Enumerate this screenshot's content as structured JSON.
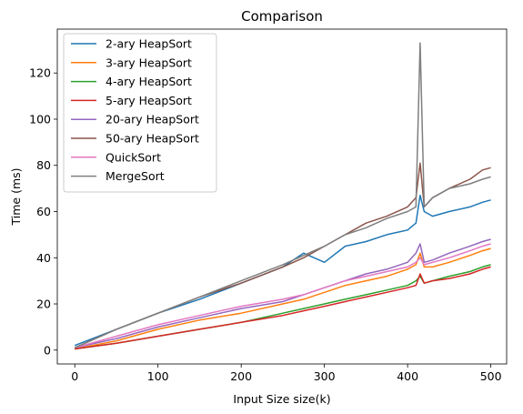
{
  "chart_data": {
    "type": "line",
    "title": "Comparison",
    "xlabel": "Input Size size(k)",
    "ylabel": "Time (ms)",
    "xlim": [
      -21,
      519
    ],
    "ylim": [
      -6,
      139
    ],
    "x_ticks": [
      0,
      100,
      200,
      300,
      400,
      500
    ],
    "y_ticks": [
      0,
      20,
      40,
      60,
      80,
      100,
      120
    ],
    "grid": false,
    "legend_position": "upper-left",
    "x": [
      0,
      50,
      100,
      150,
      200,
      250,
      275,
      300,
      325,
      350,
      375,
      400,
      410,
      415,
      420,
      430,
      450,
      475,
      490,
      500
    ],
    "series": [
      {
        "name": "2-ary HeapSort",
        "color": "#1f77b4",
        "values": [
          2,
          9,
          16,
          22,
          29,
          36,
          42,
          38,
          45,
          47,
          50,
          52,
          55,
          67,
          60,
          58,
          60,
          62,
          64,
          65
        ]
      },
      {
        "name": "3-ary HeapSort",
        "color": "#ff7f0e",
        "values": [
          0.5,
          4,
          9,
          13,
          16,
          20,
          22,
          25,
          28,
          30,
          32,
          35,
          37,
          42,
          36,
          36,
          38,
          41,
          43,
          44
        ]
      },
      {
        "name": "4-ary HeapSort",
        "color": "#2ca02c",
        "values": [
          0.5,
          3,
          6,
          9,
          12,
          16,
          18,
          20,
          22,
          24,
          26,
          28,
          30,
          32,
          29,
          30,
          32,
          34,
          36,
          37
        ]
      },
      {
        "name": "5-ary HeapSort",
        "color": "#d62728",
        "values": [
          0.5,
          3,
          6,
          9,
          12,
          15,
          17,
          19,
          21,
          23,
          25,
          27,
          28,
          33,
          29,
          30,
          31,
          33,
          35,
          36
        ]
      },
      {
        "name": "20-ary HeapSort",
        "color": "#9467bd",
        "values": [
          1,
          5,
          10,
          14,
          18,
          21,
          24,
          27,
          30,
          33,
          35,
          38,
          42,
          46,
          38,
          39,
          42,
          45,
          47,
          48
        ]
      },
      {
        "name": "50-ary HeapSort",
        "color": "#8c564b",
        "values": [
          1,
          9,
          16,
          23,
          29,
          36,
          40,
          45,
          50,
          55,
          58,
          62,
          66,
          81,
          62,
          66,
          70,
          74,
          78,
          79
        ]
      },
      {
        "name": "QuickSort",
        "color": "#e377c2",
        "values": [
          1,
          6,
          11,
          15,
          19,
          22,
          24,
          27,
          30,
          32,
          34,
          36,
          38,
          40,
          37,
          38,
          40,
          43,
          45,
          46
        ]
      },
      {
        "name": "MergeSort",
        "color": "#7f7f7f",
        "values": [
          1,
          9,
          16,
          23,
          30,
          37,
          41,
          45,
          50,
          53,
          57,
          60,
          62,
          133,
          62,
          66,
          70,
          72,
          74,
          75
        ]
      }
    ]
  }
}
